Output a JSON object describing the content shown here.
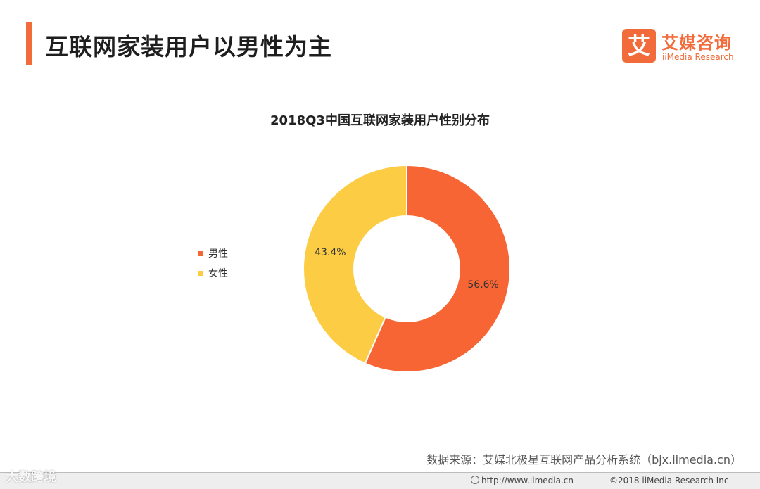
{
  "header": {
    "title": "互联网家装用户以男性为主",
    "accent_color": "#f26b3a"
  },
  "logo": {
    "mark": "艾",
    "name": "艾媒咨询",
    "subtitle": "iiMedia Research"
  },
  "chart_data": {
    "type": "pie",
    "donut": true,
    "title": "2018Q3中国互联网家装用户性别分布",
    "categories": [
      "男性",
      "女性"
    ],
    "values": [
      56.6,
      43.4
    ],
    "data_labels": [
      "56.6%",
      "43.4%"
    ],
    "colors": [
      "#f76534",
      "#fccd44"
    ],
    "legend_position": "left"
  },
  "source": "数据来源：艾媒北极星互联网产品分析系统（bjx.iimedia.cn）",
  "footer": {
    "url": "http://www.iimedia.cn",
    "copyright": "©2018  iiMedia Research  Inc"
  },
  "watermark": "大数跨境"
}
